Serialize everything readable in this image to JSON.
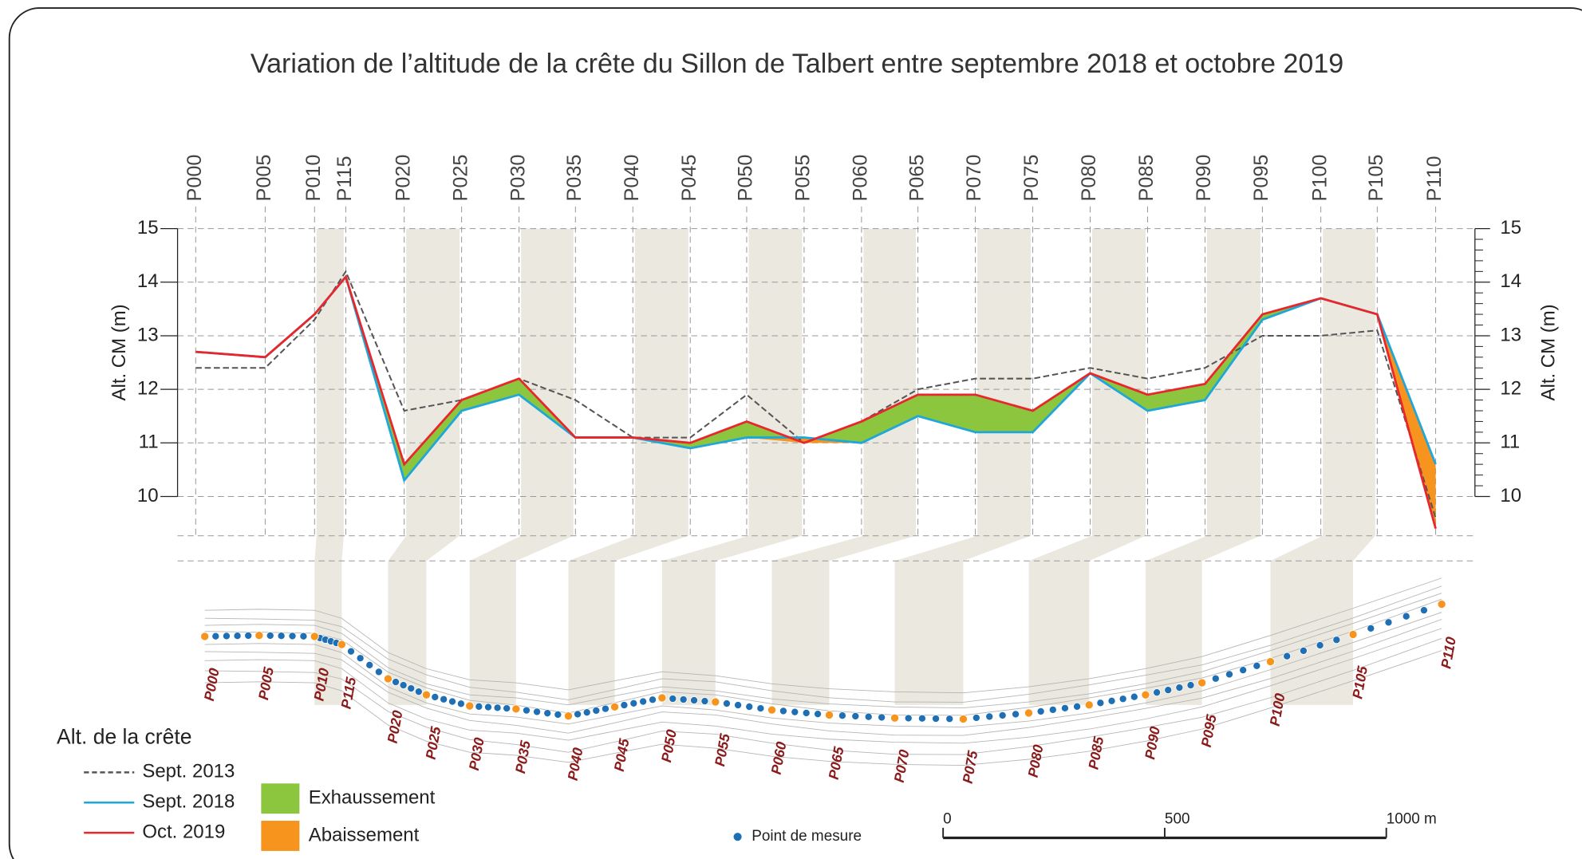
{
  "chart_data": {
    "type": "line",
    "title": "Variation de l’altitude de la crête du Sillon de Talbert entre septembre 2018 et octobre 2019",
    "ylabel": "Alt. CM (m)",
    "y2label": "Alt. CM (m)",
    "categories": [
      "P000",
      "P005",
      "P010",
      "P115",
      "P020",
      "P025",
      "P030",
      "P035",
      "P040",
      "P045",
      "P050",
      "P055",
      "P060",
      "P065",
      "P070",
      "P075",
      "P080",
      "P085",
      "P090",
      "P095",
      "P100",
      "P105",
      "P110"
    ],
    "series": [
      {
        "name": "Sept. 2013",
        "color": "#555555",
        "dashed": true,
        "values": [
          12.4,
          12.4,
          13.3,
          14.2,
          11.6,
          11.8,
          12.2,
          11.8,
          11.1,
          11.1,
          11.9,
          11.0,
          11.4,
          12.0,
          12.2,
          12.2,
          12.4,
          12.2,
          12.4,
          13.0,
          13.0,
          13.1,
          9.6
        ]
      },
      {
        "name": "Sept. 2018",
        "color": "#1ea7d8",
        "values": [
          12.7,
          12.6,
          13.4,
          14.1,
          10.3,
          11.6,
          11.9,
          11.1,
          11.1,
          10.9,
          11.1,
          11.1,
          11.0,
          11.5,
          11.2,
          11.2,
          12.3,
          11.6,
          11.8,
          13.3,
          13.7,
          13.4,
          10.6
        ]
      },
      {
        "name": "Oct. 2019",
        "color": "#e8262b",
        "values": [
          12.7,
          12.6,
          13.4,
          14.1,
          10.6,
          11.8,
          12.2,
          11.1,
          11.1,
          11.0,
          11.4,
          11.0,
          11.4,
          11.9,
          11.9,
          11.6,
          12.3,
          11.9,
          12.1,
          13.4,
          13.7,
          13.4,
          9.4
        ]
      }
    ],
    "areas": [
      {
        "name": "Exhaussement",
        "color": "#8cc63f"
      },
      {
        "name": "Abaissement",
        "color": "#f7941d"
      }
    ],
    "ylim": [
      10,
      15
    ],
    "yticks": [
      10,
      11,
      12,
      13,
      14,
      15
    ],
    "y2lim": [
      10,
      15
    ],
    "y2ticks": [
      10,
      11,
      12,
      13,
      14,
      15
    ],
    "grid": true,
    "legend": {
      "title": "Alt. de la crête",
      "position": "lower left"
    },
    "point_legend": {
      "label": "Point de mesure",
      "color": "#1f6fb5"
    },
    "scale_bar": {
      "range": [
        0,
        1000
      ],
      "ticks": [
        0,
        500,
        {
          "value": 1000,
          "label": "1000 m"
        }
      ]
    }
  }
}
